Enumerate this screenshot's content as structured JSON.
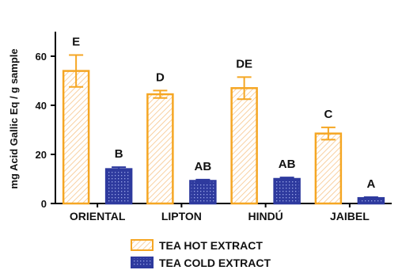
{
  "chart_data": {
    "type": "bar",
    "ylabel": "mg Acid Gallic Eq / g sample",
    "ylim": [
      0,
      70
    ],
    "yticks": [
      "0",
      "20",
      "40",
      "60"
    ],
    "categories": [
      "ORIENTAL",
      "LIPTON",
      "HINDÚ",
      "JAIBEL"
    ],
    "series": [
      {
        "name": "TEA HOT EXTRACT",
        "color": "#F5A623",
        "values": [
          54,
          44.5,
          47,
          28.5
        ],
        "errors": [
          6.5,
          1.5,
          4.5,
          2.5
        ],
        "letters": [
          "E",
          "D",
          "DE",
          "C"
        ]
      },
      {
        "name": "TEA COLD EXTRACT",
        "color": "#2E3A9E",
        "values": [
          14,
          9.2,
          10,
          2.2
        ],
        "errors": [
          0.8,
          0.5,
          0.6,
          0.4
        ],
        "letters": [
          "B",
          "AB",
          "AB",
          "A"
        ]
      }
    ],
    "legend": "bottom"
  }
}
